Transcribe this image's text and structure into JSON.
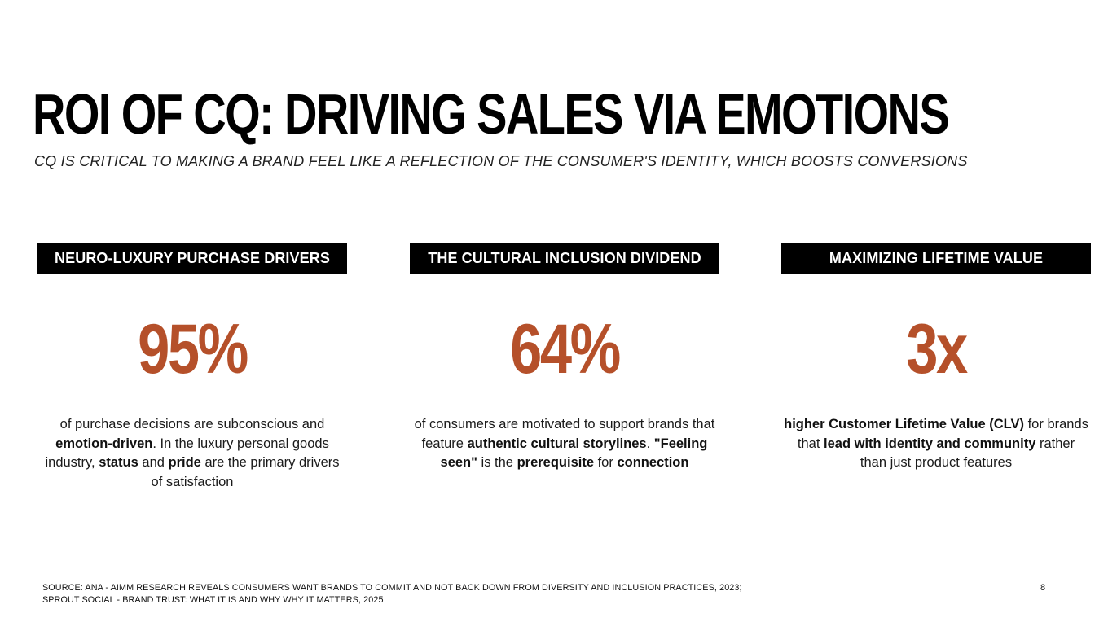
{
  "header": {
    "title": "ROI OF CQ: DRIVING SALES VIA EMOTIONS",
    "subtitle": "CQ IS CRITICAL TO MAKING A BRAND FEEL LIKE A REFLECTION OF THE CONSUMER'S IDENTITY, WHICH BOOSTS CONVERSIONS"
  },
  "columns": [
    {
      "label": "NEURO-LUXURY PURCHASE DRIVERS",
      "stat": "95%",
      "desc": {
        "t1": "of purchase decisions are subconscious and ",
        "b1": "emotion-driven",
        "t2": ". In the luxury personal goods industry, ",
        "b2": "status",
        "t3": " and ",
        "b3": "pride",
        "t4": " are the primary drivers of satisfaction"
      }
    },
    {
      "label": "THE CULTURAL INCLUSION DIVIDEND",
      "stat": "64%",
      "desc": {
        "t1": "of consumers are motivated to support brands that feature ",
        "b1": "authentic cultural storylines",
        "t2": ". ",
        "b2": "\"Feeling seen\"",
        "t3": " is the ",
        "b3": "prerequisite",
        "t4": " for ",
        "b4": "connection"
      }
    },
    {
      "label": "MAXIMIZING LIFETIME VALUE",
      "stat": "3x",
      "desc": {
        "b1": "higher Customer Lifetime Value (CLV)",
        "t1": " for brands that ",
        "b2": "lead with identity and community",
        "t2": " rather than just product features"
      }
    }
  ],
  "footer": {
    "source_line1": "SOURCE: ANA - AIMM RESEARCH REVEALS CONSUMERS WANT BRANDS TO COMMIT AND NOT BACK DOWN FROM DIVERSITY AND INCLUSION PRACTICES, 2023;",
    "source_line2": "SPROUT SOCIAL  - BRAND TRUST: WHAT IT IS AND WHY WHY IT MATTERS, 2025",
    "page_number": "8"
  },
  "colors": {
    "accent": "#b5502a",
    "label_bg": "#000000",
    "label_text": "#ffffff"
  }
}
